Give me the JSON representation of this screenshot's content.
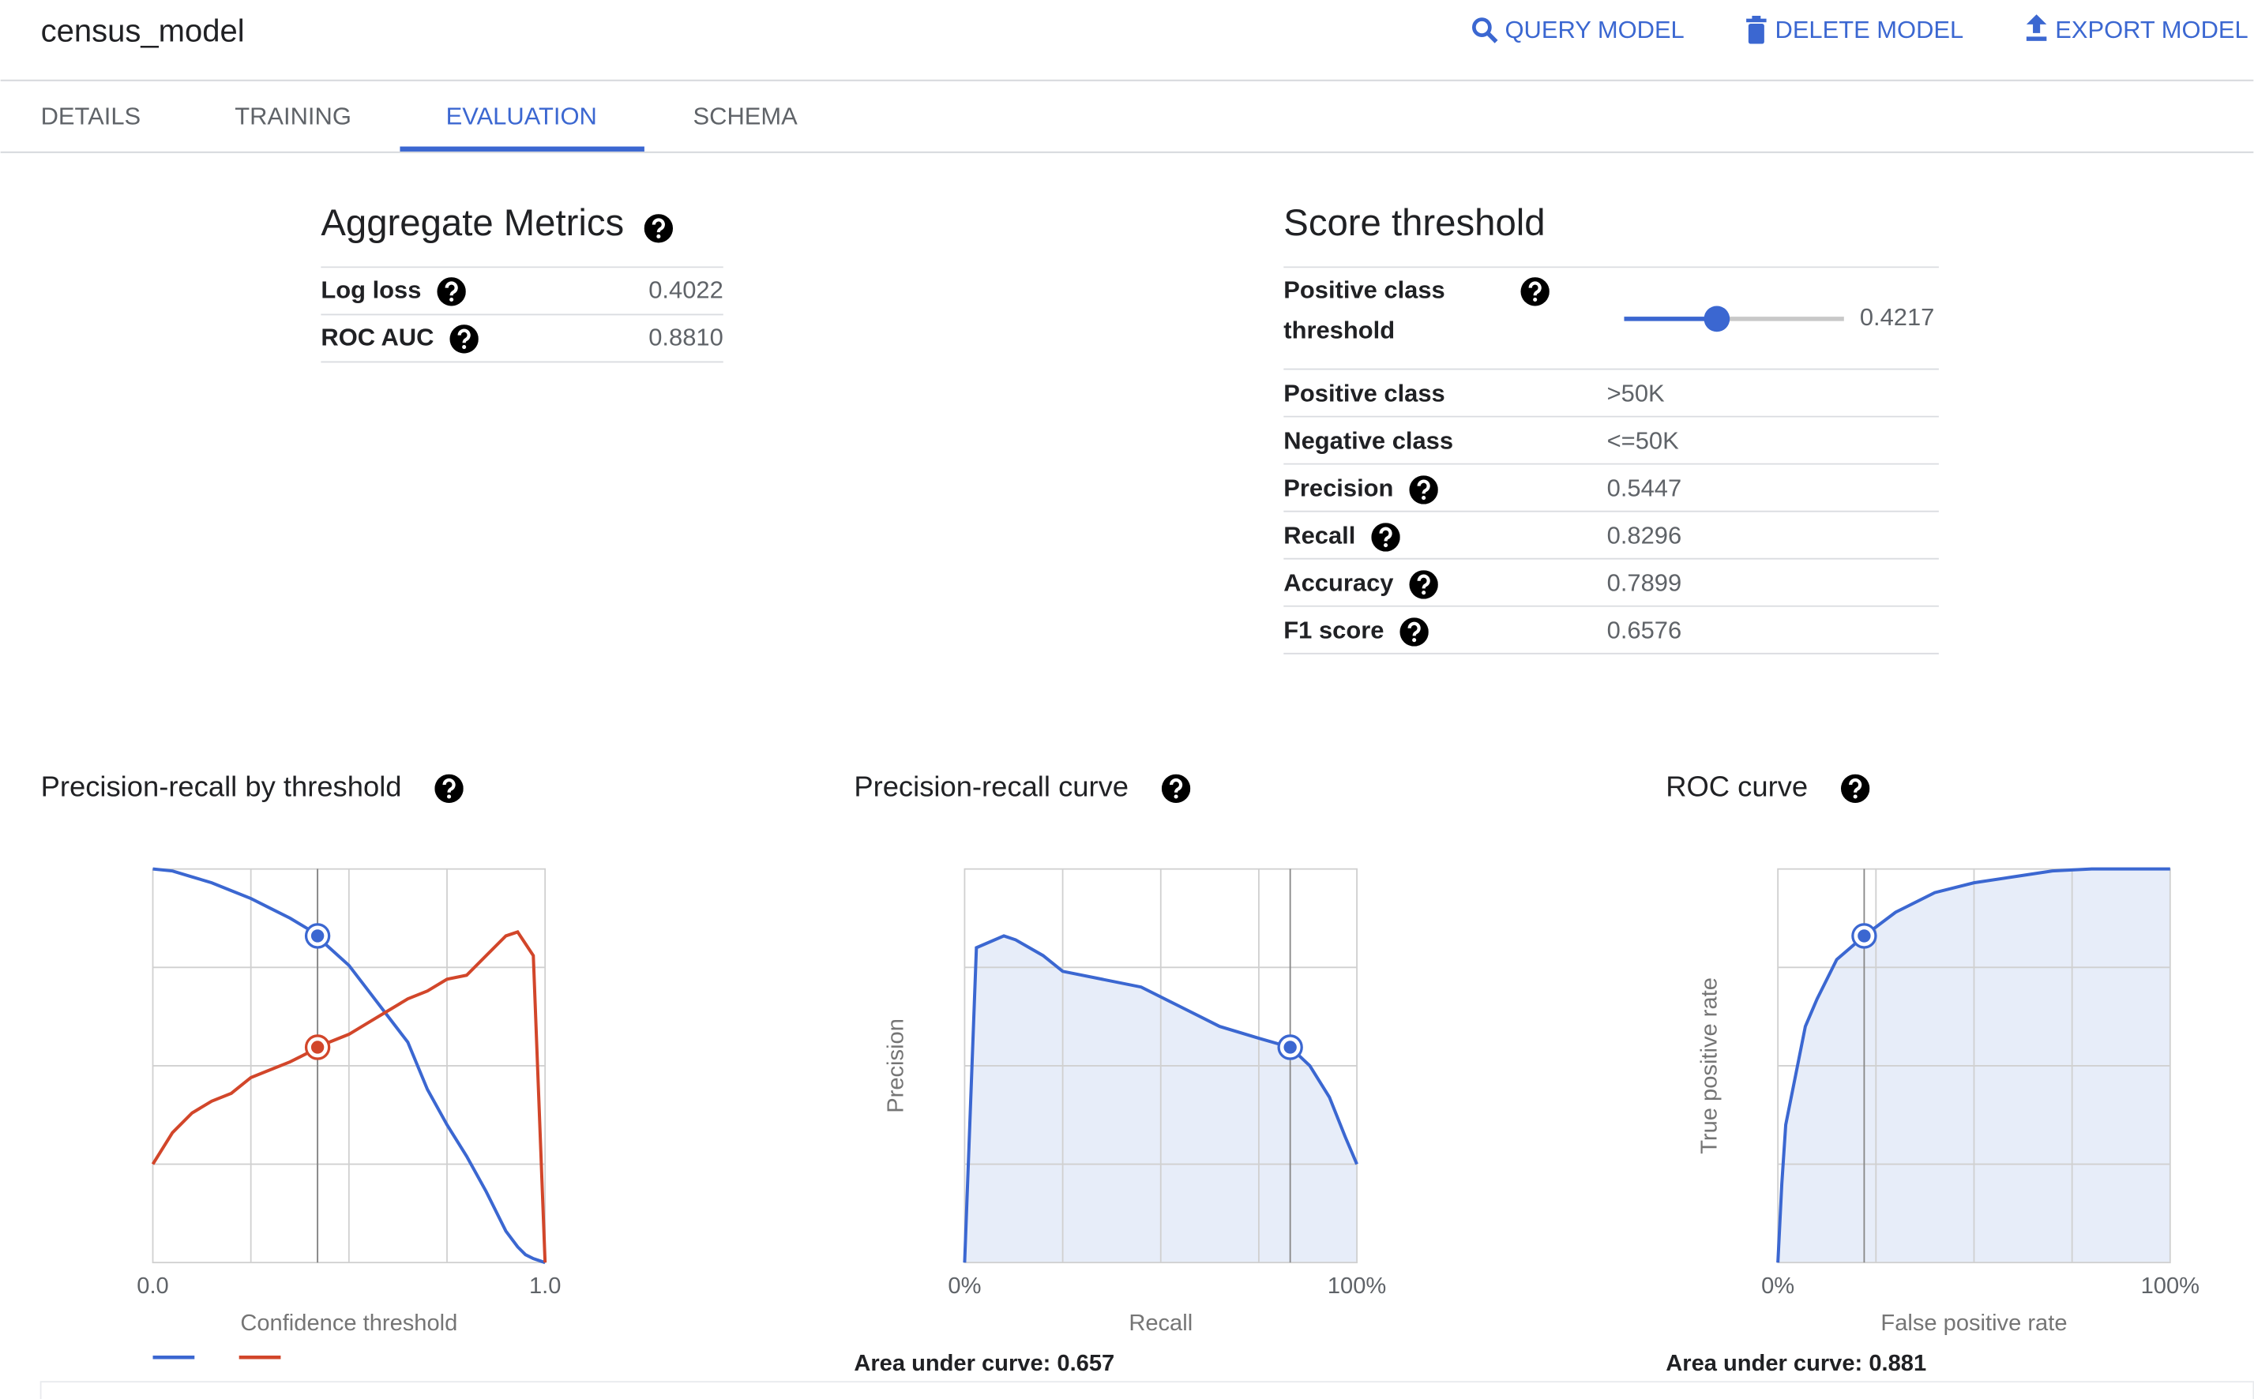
{
  "header": {
    "title": "census_model",
    "actions": [
      "QUERY MODEL",
      "DELETE MODEL",
      "EXPORT MODEL"
    ]
  },
  "tabs": {
    "items": [
      "DETAILS",
      "TRAINING",
      "EVALUATION",
      "SCHEMA"
    ],
    "active": 2
  },
  "aggregate_metrics": {
    "title": "Aggregate Metrics",
    "rows": [
      {
        "label": "Log loss",
        "value": "0.4022"
      },
      {
        "label": "ROC AUC",
        "value": "0.8810"
      }
    ]
  },
  "score_threshold": {
    "title": "Score threshold",
    "threshold_label": [
      "Positive class",
      "threshold"
    ],
    "threshold": 0.4217,
    "rows": [
      {
        "label": "Positive class",
        "value": ">50K",
        "help": false
      },
      {
        "label": "Negative class",
        "value": "<=50K",
        "help": false
      },
      {
        "label": "Precision",
        "value": "0.5447",
        "help": true
      },
      {
        "label": "Recall",
        "value": "0.8296",
        "help": true
      },
      {
        "label": "Accuracy",
        "value": "0.7899",
        "help": true
      },
      {
        "label": "F1 score",
        "value": "0.6576",
        "help": true
      }
    ]
  },
  "chart_data": [
    {
      "type": "line",
      "title": "Precision-recall by threshold",
      "xlabel": "Confidence threshold",
      "x": [
        0,
        0.05,
        0.1,
        0.15,
        0.2,
        0.25,
        0.3,
        0.35,
        0.4,
        0.45,
        0.5,
        0.55,
        0.6,
        0.65,
        0.7,
        0.75,
        0.8,
        0.85,
        0.9,
        0.93,
        0.95,
        0.97,
        1.0
      ],
      "series": [
        {
          "color": "#3b67d1",
          "values": [
            1.0,
            0.995,
            0.98,
            0.965,
            0.945,
            0.925,
            0.9,
            0.875,
            0.845,
            0.8,
            0.755,
            0.69,
            0.625,
            0.56,
            0.44,
            0.35,
            0.27,
            0.18,
            0.08,
            0.04,
            0.02,
            0.01,
            0
          ]
        },
        {
          "color": "#d2462a",
          "values": [
            0.25,
            0.33,
            0.38,
            0.41,
            0.43,
            0.47,
            0.49,
            0.51,
            0.535,
            0.56,
            0.58,
            0.61,
            0.64,
            0.67,
            0.69,
            0.72,
            0.73,
            0.78,
            0.83,
            0.84,
            0.81,
            0.78,
            0
          ]
        }
      ],
      "xlim": [
        0,
        1
      ],
      "ylim": [
        0,
        1
      ],
      "xticks": [
        {
          "value": 0,
          "label": "0.0"
        },
        {
          "value": 1,
          "label": "1.0"
        }
      ],
      "grid_x": [
        0.25,
        0.5,
        0.75
      ],
      "grid_y": [
        0.25,
        0.5,
        0.75
      ],
      "markers": [
        {
          "x": 0.42,
          "y": 0.83,
          "color": "#3b67d1"
        },
        {
          "x": 0.42,
          "y": 0.547,
          "color": "#d2462a"
        }
      ],
      "area": false,
      "legend": true
    },
    {
      "type": "line",
      "title": "Precision-recall curve",
      "xlabel": "Recall",
      "ylabel": "Precision",
      "x": [
        0,
        3,
        10,
        13,
        20,
        25,
        35,
        45,
        55,
        65,
        75,
        83,
        88,
        93,
        97,
        100
      ],
      "series": [
        {
          "color": "#3b67d1",
          "values": [
            0,
            0.8,
            0.83,
            0.82,
            0.78,
            0.74,
            0.72,
            0.7,
            0.65,
            0.6,
            0.57,
            0.547,
            0.5,
            0.42,
            0.32,
            0.25
          ]
        }
      ],
      "xlim": [
        0,
        100
      ],
      "ylim": [
        0,
        1
      ],
      "xticks": [
        {
          "value": 0,
          "label": "0%"
        },
        {
          "value": 100,
          "label": "100%"
        }
      ],
      "grid_x": [
        25,
        50,
        75
      ],
      "grid_y": [
        0.25,
        0.5,
        0.75
      ],
      "markers": [
        {
          "x": 83,
          "y": 0.547,
          "color": "#3b67d1"
        }
      ],
      "area": true,
      "footer": "Area under curve: 0.657"
    },
    {
      "type": "line",
      "title": "ROC curve",
      "xlabel": "False positive rate",
      "ylabel": "True positive rate",
      "x": [
        0,
        1,
        2,
        4,
        7,
        10,
        15,
        22,
        30,
        40,
        50,
        60,
        70,
        80,
        100
      ],
      "series": [
        {
          "color": "#3b67d1",
          "values": [
            0,
            0.2,
            0.35,
            0.45,
            0.6,
            0.67,
            0.77,
            0.83,
            0.89,
            0.94,
            0.965,
            0.98,
            0.995,
            1,
            1
          ]
        }
      ],
      "xlim": [
        0,
        100
      ],
      "ylim": [
        0,
        1
      ],
      "xticks": [
        {
          "value": 0,
          "label": "0%"
        },
        {
          "value": 100,
          "label": "100%"
        }
      ],
      "grid_x": [
        25,
        50,
        75
      ],
      "grid_y": [
        0.25,
        0.5,
        0.75
      ],
      "markers": [
        {
          "x": 22,
          "y": 0.83,
          "color": "#3b67d1"
        }
      ],
      "area": true,
      "footer": "Area under curve: 0.881"
    }
  ]
}
